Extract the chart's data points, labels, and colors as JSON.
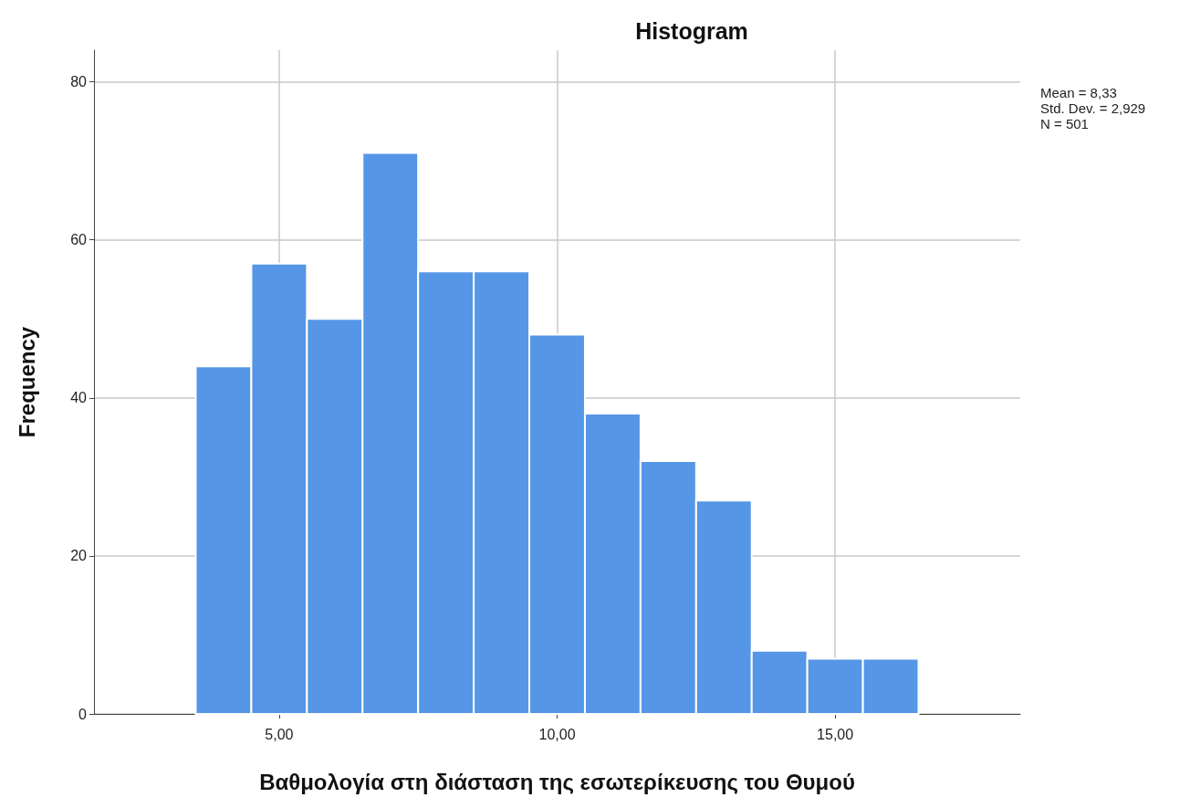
{
  "chart_data": {
    "type": "histogram",
    "title": "Histogram",
    "xlabel": "Βαθμολογία στη διάσταση της εσωτερίκευσης του Θυμού",
    "ylabel": "Frequency",
    "bins": [
      3.5,
      4.5,
      5.5,
      6.5,
      7.5,
      8.5,
      9.5,
      10.5,
      11.5,
      12.5,
      13.5,
      14.5,
      15.5,
      16.5
    ],
    "values": [
      44,
      57,
      50,
      71,
      56,
      56,
      48,
      38,
      32,
      27,
      8,
      7,
      7
    ],
    "color": "#5596e6",
    "xlim": [
      1.67,
      18.33
    ],
    "xticks": [
      {
        "value": 5,
        "label": "5,00"
      },
      {
        "value": 10,
        "label": "10,00"
      },
      {
        "value": 15,
        "label": "15,00"
      }
    ],
    "ylim": [
      0,
      84
    ],
    "yticks": [
      0,
      20,
      40,
      60,
      80
    ],
    "grid": true,
    "annotations": [
      "Mean = 8,33",
      "Std. Dev. = 2,929",
      "N = 501"
    ]
  }
}
